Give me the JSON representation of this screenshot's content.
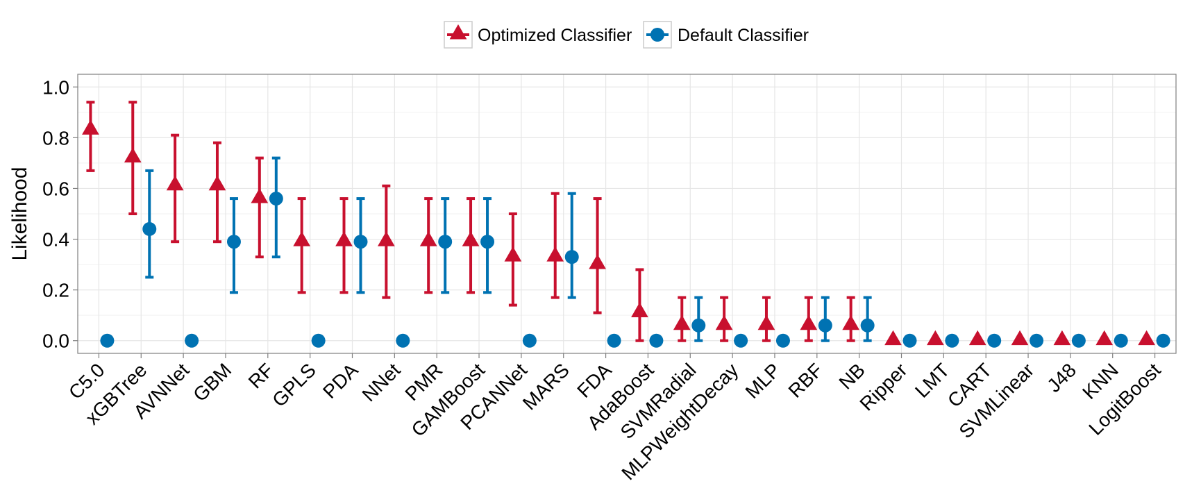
{
  "chart_data": {
    "type": "scatter",
    "title": "",
    "xlabel": "",
    "ylabel": "Likelihood",
    "ylim": [
      -0.05,
      1.05
    ],
    "yticks": [
      "0.0",
      "0.2",
      "0.4",
      "0.6",
      "0.8",
      "1.0"
    ],
    "ytick_values": [
      0,
      0.2,
      0.4,
      0.6,
      0.8,
      1.0
    ],
    "grid": true,
    "legend_position": "top",
    "categories": [
      "C5.0",
      "xGBTree",
      "AVNNet",
      "GBM",
      "RF",
      "GPLS",
      "PDA",
      "NNet",
      "PMR",
      "GAMBoost",
      "PCANNet",
      "MARS",
      "FDA",
      "AdaBoost",
      "SVMRadial",
      "MLPWeightDecay",
      "MLP",
      "RBF",
      "NB",
      "Ripper",
      "LMT",
      "CART",
      "SVMLinear",
      "J48",
      "KNN",
      "LogitBoost"
    ],
    "series": [
      {
        "name": "Optimized Classifier",
        "color": "#c8102e",
        "marker": "triangle",
        "values": [
          0.83,
          0.72,
          0.61,
          0.61,
          0.56,
          0.39,
          0.39,
          0.39,
          0.39,
          0.39,
          0.33,
          0.33,
          0.3,
          0.11,
          0.06,
          0.06,
          0.06,
          0.06,
          0.06,
          0.0,
          0.0,
          0.0,
          0.0,
          0.0,
          0.0,
          0.0
        ],
        "lower": [
          0.67,
          0.5,
          0.39,
          0.39,
          0.33,
          0.19,
          0.19,
          0.17,
          0.19,
          0.19,
          0.14,
          0.17,
          0.11,
          0.0,
          0.0,
          0.0,
          0.0,
          0.0,
          0.0,
          null,
          null,
          null,
          null,
          null,
          null,
          null
        ],
        "upper": [
          0.94,
          0.94,
          0.81,
          0.78,
          0.72,
          0.56,
          0.56,
          0.61,
          0.56,
          0.56,
          0.5,
          0.58,
          0.56,
          0.28,
          0.17,
          0.17,
          0.17,
          0.17,
          0.17,
          null,
          null,
          null,
          null,
          null,
          null,
          null
        ]
      },
      {
        "name": "Default Classifier",
        "color": "#0072b2",
        "marker": "circle",
        "values": [
          0.0,
          0.44,
          0.0,
          0.39,
          0.56,
          0.0,
          0.39,
          0.0,
          0.39,
          0.39,
          0.0,
          0.33,
          0.0,
          0.0,
          0.06,
          0.0,
          0.0,
          0.06,
          0.06,
          0.0,
          0.0,
          0.0,
          0.0,
          0.0,
          0.0,
          0.0
        ],
        "lower": [
          null,
          0.25,
          null,
          0.19,
          0.33,
          null,
          0.19,
          null,
          0.19,
          0.19,
          null,
          0.17,
          null,
          null,
          0.0,
          null,
          null,
          0.0,
          0.0,
          null,
          null,
          null,
          null,
          null,
          null,
          null
        ],
        "upper": [
          null,
          0.67,
          null,
          0.56,
          0.72,
          null,
          0.56,
          null,
          0.56,
          0.56,
          null,
          0.58,
          null,
          null,
          0.17,
          null,
          null,
          0.17,
          0.17,
          null,
          null,
          null,
          null,
          null,
          null,
          null
        ]
      }
    ]
  }
}
